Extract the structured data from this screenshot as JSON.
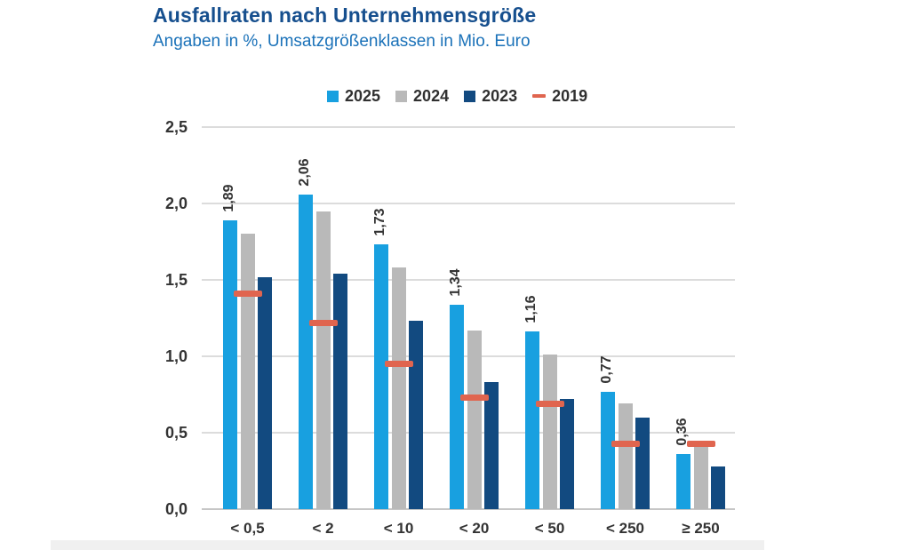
{
  "chart_data": {
    "type": "bar",
    "title": "Ausfallraten nach Unternehmensgröße",
    "subtitle": "Angaben in %, Umsatzgrößenklassen in Mio. Euro",
    "categories": [
      "< 0,5",
      "< 2",
      "< 10",
      "< 20",
      "< 50",
      "< 250",
      "≥ 250"
    ],
    "series": [
      {
        "name": "2025",
        "marker": "square",
        "color": "#18a0e0",
        "show_labels": true,
        "values": [
          1.89,
          2.06,
          1.73,
          1.34,
          1.16,
          0.77,
          0.36
        ]
      },
      {
        "name": "2024",
        "marker": "square",
        "color": "#b9b9b9",
        "values": [
          1.8,
          1.95,
          1.58,
          1.17,
          1.01,
          0.69,
          0.42
        ]
      },
      {
        "name": "2023",
        "marker": "square",
        "color": "#124a80",
        "values": [
          1.52,
          1.54,
          1.23,
          0.83,
          0.72,
          0.6,
          0.28
        ]
      },
      {
        "name": "2019",
        "marker": "dash",
        "color": "#e0654f",
        "values": [
          1.41,
          1.22,
          0.95,
          0.73,
          0.69,
          0.43,
          0.43
        ]
      }
    ],
    "ylim": [
      0,
      2.5
    ],
    "ytick_values": [
      0,
      0.5,
      1.0,
      1.5,
      2.0,
      2.5
    ],
    "ytick_labels": [
      "0,0",
      "0,5",
      "1,0",
      "1,5",
      "2,0",
      "2,5"
    ],
    "decimal_separator": ",",
    "grid": true,
    "legend_position": "top",
    "colors": {
      "title": "#164f8e",
      "subtitle": "#1b72b9",
      "axis_text": "#333333",
      "grid": "#dcdcdc",
      "axis_line": "#c6c6c6",
      "background": "#ffffff"
    }
  }
}
